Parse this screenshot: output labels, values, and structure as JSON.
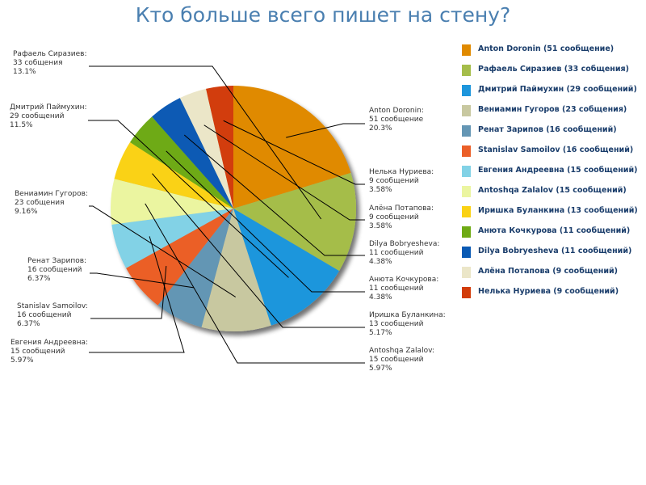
{
  "title": "Кто больше всего пишет на стену?",
  "chart_data": {
    "type": "pie",
    "title": "Кто больше всего пишет на стену?",
    "legend_position": "right",
    "slices": [
      {
        "name": "Anton Doronin",
        "value": 51,
        "percent": "20.3%",
        "count_text": "51 сообщение",
        "legend": "Anton Doronin (51 сообщение)",
        "color": "#e08a00"
      },
      {
        "name": "Рафаель Сиразиев",
        "value": 33,
        "percent": "13.1%",
        "count_text": "33 собщения",
        "legend": "Рафаель Сиразиев (33 собщения)",
        "color": "#a5bd4a"
      },
      {
        "name": "Дмитрий Паймухин",
        "value": 29,
        "percent": "11.5%",
        "count_text": "29 сообщений",
        "legend": "Дмитрий Паймухин (29 сообщений)",
        "color": "#1e96dc"
      },
      {
        "name": "Вениамин Гугоров",
        "value": 23,
        "percent": "9.16%",
        "count_text": "23 собщения",
        "legend": "Вениамин Гугоров (23 собщения)",
        "color": "#c8c8a0"
      },
      {
        "name": "Ренат Зарипов",
        "value": 16,
        "percent": "6.37%",
        "count_text": "16 сообщений",
        "legend": "Ренат Зарипов (16 сообщений)",
        "color": "#6496b4"
      },
      {
        "name": "Stanislav Samoilov",
        "value": 16,
        "percent": "6.37%",
        "count_text": "16 сообщений",
        "legend": "Stanislav Samoilov (16 сообщений)",
        "color": "#eb5f28"
      },
      {
        "name": "Евгения Андреевна",
        "value": 15,
        "percent": "5.97%",
        "count_text": "15 сообщений",
        "legend": "Евгения Андреевна (15 сообщений)",
        "color": "#82d2e6"
      },
      {
        "name": "Antoshqa Zalalov",
        "value": 15,
        "percent": "5.97%",
        "count_text": "15 сообщений",
        "legend": "Antoshqa Zalalov (15 сообщений)",
        "color": "#ebf5a0"
      },
      {
        "name": "Иришка Буланкина",
        "value": 13,
        "percent": "5.17%",
        "count_text": "13 сообщений",
        "legend": "Иришка Буланкина (13 сообщений)",
        "color": "#fad214"
      },
      {
        "name": "Анюта Кочкурова",
        "value": 11,
        "percent": "4.38%",
        "count_text": "11 сообщений",
        "legend": "Анюта Кочкурова (11 сообщений)",
        "color": "#6eaa14"
      },
      {
        "name": "Dilya Bobryesheva",
        "value": 11,
        "percent": "4.38%",
        "count_text": "11 сообщений",
        "legend": "Dilya Bobryesheva (11 сообщений)",
        "color": "#0a5ab4"
      },
      {
        "name": "Алёна Потапова",
        "value": 9,
        "percent": "3.58%",
        "count_text": "9 сообщений",
        "legend": "Алёна Потапова (9 сообщений)",
        "color": "#ebe6c8"
      },
      {
        "name": "Нелька Нуриева",
        "value": 9,
        "percent": "3.58%",
        "count_text": "9 сообщений",
        "legend": "Нелька Нуриева (9 сообщений)",
        "color": "#d23c0a"
      }
    ]
  }
}
